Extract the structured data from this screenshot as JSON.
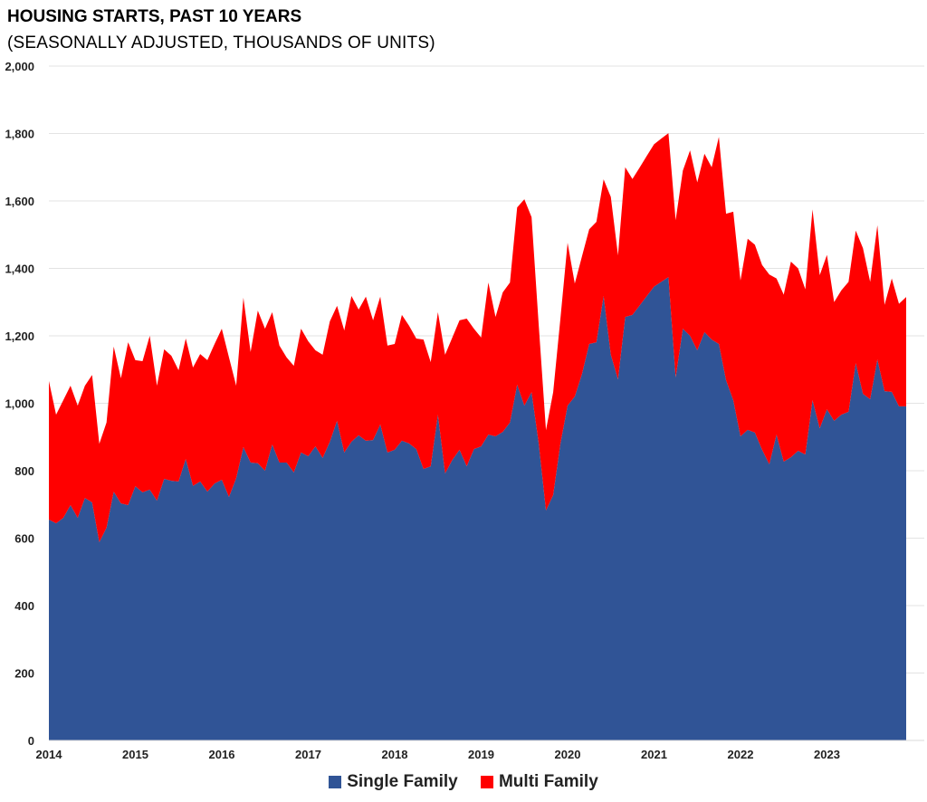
{
  "chart_data": {
    "type": "area",
    "stacked": true,
    "title": "HOUSING STARTS, PAST 10 YEARS",
    "subtitle": "(SEASONALLY ADJUSTED, THOUSANDS OF UNITS)",
    "xlabel": "",
    "ylabel": "",
    "ylim": [
      0,
      2000
    ],
    "yticks": [
      0,
      200,
      400,
      600,
      800,
      1000,
      1200,
      1400,
      1600,
      1800,
      2000
    ],
    "ytick_labels": [
      "0",
      "200",
      "400",
      "600",
      "800",
      "1,000",
      "1,200",
      "1,400",
      "1,600",
      "1,800",
      "2,000"
    ],
    "xtick_labels": [
      "2014",
      "2015",
      "2016",
      "2017",
      "2018",
      "2019",
      "2020",
      "2021",
      "2022",
      "2023"
    ],
    "x_start": "2014-01",
    "frequency": "monthly",
    "grid": true,
    "legend_position": "bottom",
    "series": [
      {
        "name": "Single Family",
        "color": "#305496",
        "values": [
          655,
          644,
          660,
          698,
          660,
          719,
          706,
          588,
          631,
          738,
          703,
          698,
          754,
          736,
          744,
          711,
          776,
          770,
          768,
          835,
          755,
          768,
          738,
          762,
          773,
          722,
          778,
          870,
          824,
          822,
          800,
          878,
          824,
          824,
          795,
          854,
          843,
          872,
          838,
          886,
          948,
          854,
          886,
          905,
          889,
          891,
          937,
          854,
          862,
          889,
          881,
          864,
          805,
          813,
          966,
          792,
          832,
          862,
          813,
          864,
          872,
          907,
          902,
          915,
          943,
          1055,
          993,
          1033,
          880,
          682,
          728,
          880,
          993,
          1020,
          1087,
          1176,
          1181,
          1318,
          1144,
          1071,
          1256,
          1262,
          1290,
          1318,
          1346,
          1360,
          1374,
          1077,
          1221,
          1200,
          1157,
          1211,
          1189,
          1176,
          1068,
          1009,
          902,
          921,
          913,
          862,
          819,
          907,
          827,
          840,
          859,
          848,
          1009,
          926,
          982,
          948,
          966,
          975,
          1119,
          1028,
          1012,
          1130,
          1036,
          1034,
          991,
          991
        ]
      },
      {
        "name": "Multi Family",
        "color": "#FF0000",
        "values": [
          411,
          322,
          349,
          354,
          333,
          333,
          378,
          292,
          312,
          430,
          371,
          483,
          374,
          389,
          456,
          341,
          384,
          371,
          330,
          357,
          351,
          378,
          390,
          414,
          448,
          414,
          274,
          443,
          328,
          453,
          421,
          392,
          347,
          312,
          316,
          367,
          341,
          285,
          306,
          357,
          341,
          362,
          432,
          373,
          427,
          355,
          379,
          317,
          314,
          373,
          349,
          328,
          384,
          309,
          304,
          352,
          363,
          384,
          438,
          357,
          323,
          451,
          354,
          414,
          415,
          526,
          612,
          519,
          350,
          238,
          305,
          370,
          483,
          335,
          349,
          340,
          357,
          346,
          468,
          368,
          444,
          403,
          409,
          416,
          422,
          425,
          427,
          466,
          469,
          550,
          498,
          529,
          511,
          614,
          494,
          559,
          462,
          567,
          557,
          548,
          563,
          463,
          495,
          580,
          541,
          490,
          566,
          454,
          458,
          352,
          369,
          385,
          393,
          432,
          348,
          398,
          256,
          336,
          304,
          324
        ]
      }
    ]
  }
}
